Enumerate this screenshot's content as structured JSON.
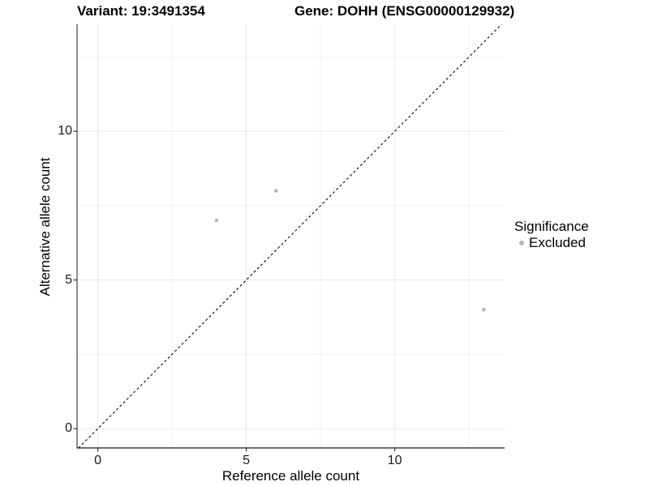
{
  "titles": {
    "variant": "Variant: 19:3491354",
    "gene": "Gene: DOHH (ENSG00000129932)"
  },
  "chart_data": {
    "type": "scatter",
    "xlabel": "Reference allele count",
    "ylabel": "Alternative allele count",
    "xlim": [
      -0.7,
      13.7
    ],
    "ylim": [
      -0.65,
      13.6
    ],
    "x_major_ticks": [
      0,
      5,
      10
    ],
    "x_minor_ticks": [
      2.5,
      7.5,
      12.5
    ],
    "y_major_ticks": [
      0,
      5,
      10
    ],
    "y_minor_ticks": [
      2.5,
      7.5,
      12.5
    ],
    "grid": true,
    "series": [
      {
        "name": "Excluded",
        "points": [
          {
            "x": 4,
            "y": 7
          },
          {
            "x": 6,
            "y": 8
          },
          {
            "x": 13,
            "y": 4
          }
        ]
      }
    ],
    "reference_line": {
      "kind": "identity",
      "slope": 1,
      "intercept": 0,
      "style": "dashed",
      "color": "#000000"
    },
    "legend": {
      "title": "Significance",
      "position": "right",
      "entries": [
        {
          "label": "Excluded",
          "color": "#b4b4b4"
        }
      ]
    },
    "colors": {
      "point": "#b4b4b4",
      "grid_major": "#e7e7e7",
      "grid_minor": "#f2f2f2",
      "axis_line": "#404040",
      "tick_mark": "#333333",
      "text": "#000000"
    }
  }
}
